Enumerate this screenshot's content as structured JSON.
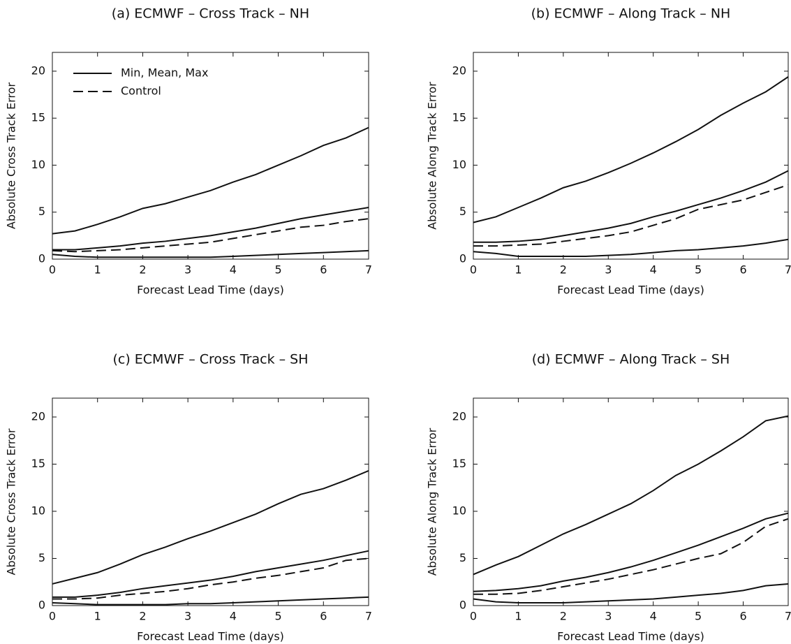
{
  "chart_data": [
    {
      "type": "line",
      "title": "(a) ECMWF – Cross Track – NH",
      "xlabel": "Forecast Lead Time (days)",
      "ylabel": "Absolute Cross Track Error",
      "x": [
        0,
        0.5,
        1,
        1.5,
        2,
        2.5,
        3,
        3.5,
        4,
        4.5,
        5,
        5.5,
        6,
        6.5,
        7
      ],
      "xlim": [
        0,
        7
      ],
      "ylim": [
        0,
        22
      ],
      "xticks": [
        0,
        1,
        2,
        3,
        4,
        5,
        6,
        7
      ],
      "yticks": [
        0,
        5,
        10,
        15,
        20
      ],
      "legend": {
        "loc": "upper left",
        "entries": [
          {
            "label": "Min, Mean, Max",
            "dash": "solid"
          },
          {
            "label": "Control",
            "dash": "dashed"
          }
        ]
      },
      "series": [
        {
          "color": "#111",
          "dash": "solid",
          "values": [
            2.7,
            3.0,
            3.7,
            4.5,
            5.4,
            5.9,
            6.6,
            7.3,
            8.2,
            9.0,
            10.0,
            11.0,
            12.1,
            12.9,
            14.0
          ]
        },
        {
          "color": "#111",
          "dash": "solid",
          "values": [
            1.0,
            1.0,
            1.2,
            1.4,
            1.7,
            1.9,
            2.2,
            2.5,
            2.9,
            3.3,
            3.8,
            4.3,
            4.7,
            5.1,
            5.5
          ]
        },
        {
          "color": "#111",
          "dash": "solid",
          "values": [
            0.5,
            0.3,
            0.2,
            0.2,
            0.2,
            0.2,
            0.2,
            0.2,
            0.3,
            0.4,
            0.5,
            0.6,
            0.7,
            0.8,
            0.9
          ]
        },
        {
          "color": "#111",
          "dash": "dashed",
          "values": [
            0.9,
            0.8,
            0.9,
            1.0,
            1.2,
            1.4,
            1.6,
            1.8,
            2.2,
            2.6,
            3.0,
            3.4,
            3.6,
            4.0,
            4.3
          ]
        }
      ]
    },
    {
      "type": "line",
      "title": "(b) ECMWF – Along Track – NH",
      "xlabel": "Forecast Lead Time (days)",
      "ylabel": "Absolute Along Track Error",
      "x": [
        0,
        0.5,
        1,
        1.5,
        2,
        2.5,
        3,
        3.5,
        4,
        4.5,
        5,
        5.5,
        6,
        6.5,
        7
      ],
      "xlim": [
        0,
        7
      ],
      "ylim": [
        0,
        22
      ],
      "xticks": [
        0,
        1,
        2,
        3,
        4,
        5,
        6,
        7
      ],
      "yticks": [
        0,
        5,
        10,
        15,
        20
      ],
      "series": [
        {
          "color": "#111",
          "dash": "solid",
          "values": [
            3.9,
            4.5,
            5.5,
            6.5,
            7.6,
            8.3,
            9.2,
            10.2,
            11.3,
            12.5,
            13.8,
            15.3,
            16.6,
            17.8,
            19.4
          ]
        },
        {
          "color": "#111",
          "dash": "solid",
          "values": [
            1.8,
            1.8,
            1.9,
            2.1,
            2.5,
            2.9,
            3.3,
            3.8,
            4.5,
            5.1,
            5.8,
            6.5,
            7.3,
            8.2,
            9.4
          ]
        },
        {
          "color": "#111",
          "dash": "solid",
          "values": [
            0.8,
            0.6,
            0.3,
            0.3,
            0.3,
            0.3,
            0.4,
            0.5,
            0.7,
            0.9,
            1.0,
            1.2,
            1.4,
            1.7,
            2.1
          ]
        },
        {
          "color": "#111",
          "dash": "dashed",
          "values": [
            1.4,
            1.4,
            1.5,
            1.6,
            1.9,
            2.2,
            2.5,
            2.9,
            3.6,
            4.3,
            5.3,
            5.8,
            6.3,
            7.1,
            7.9
          ]
        }
      ]
    },
    {
      "type": "line",
      "title": "(c) ECMWF – Cross Track – SH",
      "xlabel": "Forecast Lead Time (days)",
      "ylabel": "Absolute Cross Track Error",
      "x": [
        0,
        0.5,
        1,
        1.5,
        2,
        2.5,
        3,
        3.5,
        4,
        4.5,
        5,
        5.5,
        6,
        6.5,
        7
      ],
      "xlim": [
        0,
        7
      ],
      "ylim": [
        0,
        22
      ],
      "xticks": [
        0,
        1,
        2,
        3,
        4,
        5,
        6,
        7
      ],
      "yticks": [
        0,
        5,
        10,
        15,
        20
      ],
      "series": [
        {
          "color": "#111",
          "dash": "solid",
          "values": [
            2.3,
            2.9,
            3.5,
            4.4,
            5.4,
            6.2,
            7.1,
            7.9,
            8.8,
            9.7,
            10.8,
            11.8,
            12.4,
            13.3,
            14.3
          ]
        },
        {
          "color": "#111",
          "dash": "solid",
          "values": [
            0.9,
            0.9,
            1.1,
            1.4,
            1.8,
            2.1,
            2.4,
            2.7,
            3.1,
            3.6,
            4.0,
            4.4,
            4.8,
            5.3,
            5.8
          ]
        },
        {
          "color": "#111",
          "dash": "solid",
          "values": [
            0.3,
            0.2,
            0.1,
            0.1,
            0.1,
            0.1,
            0.2,
            0.2,
            0.3,
            0.4,
            0.5,
            0.6,
            0.7,
            0.8,
            0.9
          ]
        },
        {
          "color": "#111",
          "dash": "dashed",
          "values": [
            0.7,
            0.7,
            0.8,
            1.1,
            1.3,
            1.5,
            1.8,
            2.2,
            2.5,
            2.9,
            3.2,
            3.6,
            4.0,
            4.8,
            5.0
          ]
        }
      ]
    },
    {
      "type": "line",
      "title": "(d) ECMWF – Along Track – SH",
      "xlabel": "Forecast Lead Time (days)",
      "ylabel": "Absolute Along Track Error",
      "x": [
        0,
        0.5,
        1,
        1.5,
        2,
        2.5,
        3,
        3.5,
        4,
        4.5,
        5,
        5.5,
        6,
        6.5,
        7
      ],
      "xlim": [
        0,
        7
      ],
      "ylim": [
        0,
        22
      ],
      "xticks": [
        0,
        1,
        2,
        3,
        4,
        5,
        6,
        7
      ],
      "yticks": [
        0,
        5,
        10,
        15,
        20
      ],
      "series": [
        {
          "color": "#111",
          "dash": "solid",
          "values": [
            3.3,
            4.3,
            5.2,
            6.4,
            7.6,
            8.6,
            9.7,
            10.8,
            12.2,
            13.8,
            15.0,
            16.4,
            17.9,
            19.6,
            20.1
          ]
        },
        {
          "color": "#111",
          "dash": "solid",
          "values": [
            1.5,
            1.6,
            1.8,
            2.1,
            2.6,
            3.0,
            3.5,
            4.1,
            4.8,
            5.6,
            6.4,
            7.3,
            8.2,
            9.2,
            9.8
          ]
        },
        {
          "color": "#111",
          "dash": "solid",
          "values": [
            0.7,
            0.4,
            0.3,
            0.3,
            0.3,
            0.4,
            0.5,
            0.6,
            0.7,
            0.9,
            1.1,
            1.3,
            1.6,
            2.1,
            2.3
          ]
        },
        {
          "color": "#111",
          "dash": "dashed",
          "values": [
            1.2,
            1.2,
            1.3,
            1.6,
            2.0,
            2.4,
            2.8,
            3.3,
            3.8,
            4.4,
            5.0,
            5.5,
            6.7,
            8.4,
            9.2
          ]
        }
      ]
    }
  ]
}
